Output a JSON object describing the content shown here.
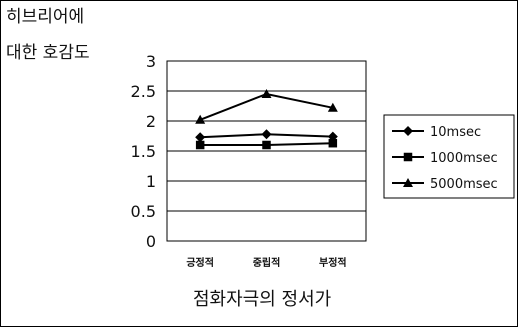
{
  "chart_data": {
    "type": "line",
    "ylabel_lines": [
      "히브리어에",
      "대한 호감도"
    ],
    "xlabel": "점화자극의 정서가",
    "categories": [
      "긍정적",
      "중립적",
      "부정적"
    ],
    "ylim": [
      0,
      3
    ],
    "yticks": [
      "0",
      "0.5",
      "1",
      "1.5",
      "2",
      "2.5",
      "3"
    ],
    "grid": true,
    "legend_position": "right",
    "series": [
      {
        "name": "10msec",
        "marker": "diamond",
        "values": [
          1.73,
          1.78,
          1.74
        ]
      },
      {
        "name": "1000msec",
        "marker": "square",
        "values": [
          1.6,
          1.6,
          1.63
        ]
      },
      {
        "name": "5000msec",
        "marker": "triangle",
        "values": [
          2.02,
          2.45,
          2.22
        ]
      }
    ],
    "line_color": "#000000",
    "plot_background": "#ffffff"
  }
}
